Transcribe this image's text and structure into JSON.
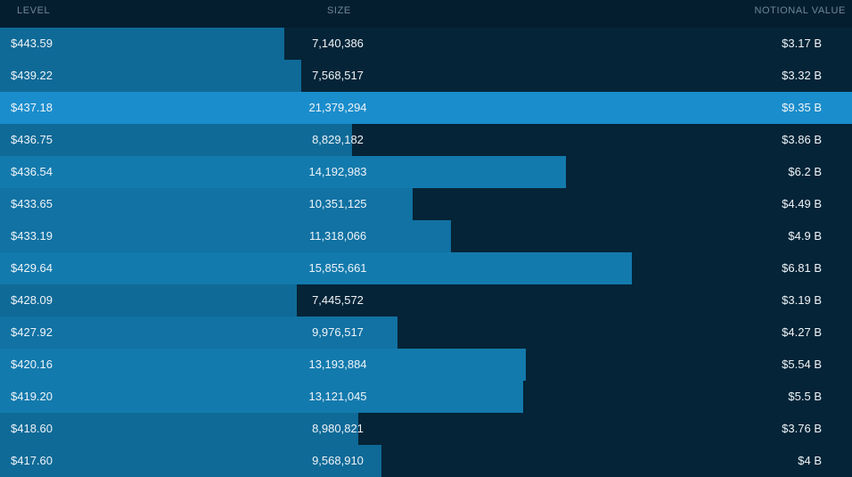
{
  "header": {
    "level": "LEVEL",
    "size": "SIZE",
    "notional": "NOTIONAL VALUE"
  },
  "colors": {
    "background": "#052033",
    "bar": "#0f6a97",
    "bar_strong": "#137aad",
    "highlight": "#1a8dcc"
  },
  "rows": [
    {
      "level": "$443.59",
      "size": "7,140,386",
      "notional": "$3.17 B",
      "size_value": 7140386
    },
    {
      "level": "$439.22",
      "size": "7,568,517",
      "notional": "$3.32 B",
      "size_value": 7568517
    },
    {
      "level": "$437.18",
      "size": "21,379,294",
      "notional": "$9.35 B",
      "size_value": 21379294,
      "highlight": true
    },
    {
      "level": "$436.75",
      "size": "8,829,182",
      "notional": "$3.86 B",
      "size_value": 8829182
    },
    {
      "level": "$436.54",
      "size": "14,192,983",
      "notional": "$6.2 B",
      "size_value": 14192983
    },
    {
      "level": "$433.65",
      "size": "10,351,125",
      "notional": "$4.49 B",
      "size_value": 10351125
    },
    {
      "level": "$433.19",
      "size": "11,318,066",
      "notional": "$4.9 B",
      "size_value": 11318066
    },
    {
      "level": "$429.64",
      "size": "15,855,661",
      "notional": "$6.81 B",
      "size_value": 15855661
    },
    {
      "level": "$428.09",
      "size": "7,445,572",
      "notional": "$3.19 B",
      "size_value": 7445572
    },
    {
      "level": "$427.92",
      "size": "9,976,517",
      "notional": "$4.27 B",
      "size_value": 9976517
    },
    {
      "level": "$420.16",
      "size": "13,193,884",
      "notional": "$5.54 B",
      "size_value": 13193884
    },
    {
      "level": "$419.20",
      "size": "13,121,045",
      "notional": "$5.5 B",
      "size_value": 13121045
    },
    {
      "level": "$418.60",
      "size": "8,980,821",
      "notional": "$3.76 B",
      "size_value": 8980821
    },
    {
      "level": "$417.60",
      "size": "9,568,910",
      "notional": "$4 B",
      "size_value": 9568910
    }
  ]
}
